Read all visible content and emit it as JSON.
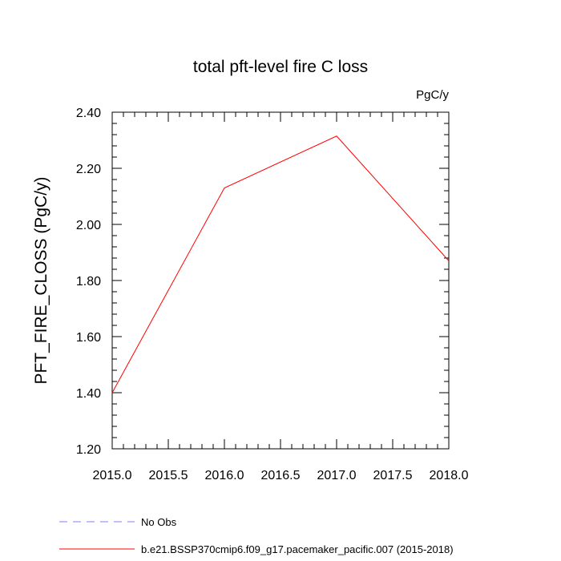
{
  "chart_data": {
    "type": "line",
    "title": "total pft-level fire C loss",
    "units_label": "PgC/y",
    "xlabel": "",
    "ylabel": "PFT_FIRE_CLOSS  (PgC/y)",
    "xlim": [
      2015.0,
      2018.0
    ],
    "ylim": [
      1.2,
      2.4
    ],
    "x_ticks": [
      2015.0,
      2015.5,
      2016.0,
      2016.5,
      2017.0,
      2017.5,
      2018.0
    ],
    "x_tick_labels": [
      "2015.0",
      "2015.5",
      "2016.0",
      "2016.5",
      "2017.0",
      "2017.5",
      "2018.0"
    ],
    "y_ticks": [
      1.2,
      1.4,
      1.6,
      1.8,
      2.0,
      2.2,
      2.4
    ],
    "y_tick_labels": [
      "1.20",
      "1.40",
      "1.60",
      "1.80",
      "2.00",
      "2.20",
      "2.40"
    ],
    "grid": false,
    "legend_position": "bottom",
    "series": [
      {
        "name": "No Obs",
        "color": "#8080ff",
        "dash": "dashed",
        "x": [],
        "y": []
      },
      {
        "name": "b.e21.BSSP370cmip6.f09_g17.pacemaker_pacific.007 (2015-2018)",
        "color": "#ff0000",
        "dash": "solid",
        "x": [
          2015.0,
          2016.0,
          2017.0,
          2018.0
        ],
        "y": [
          1.4,
          2.13,
          2.315,
          1.87
        ]
      }
    ]
  }
}
